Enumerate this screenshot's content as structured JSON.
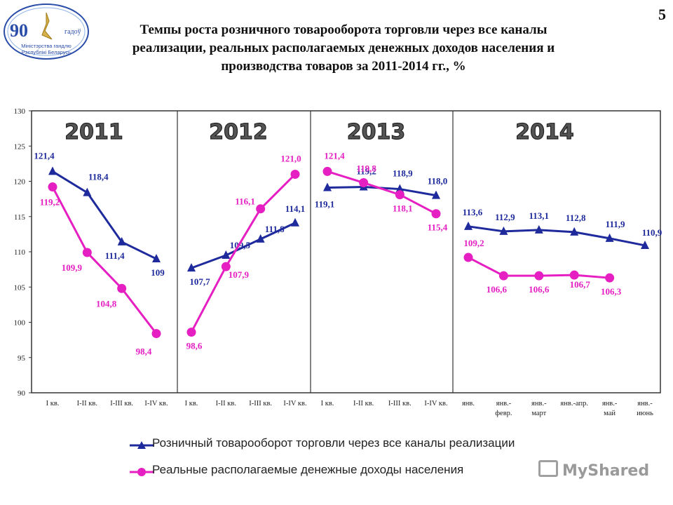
{
  "title": "Темпы роста розничного товарооборота торговли через все каналы реализации, реальных располагаемых денежных доходов населения и производства товаров за 2011-2014 гг., %",
  "page_number": "5",
  "logo": {
    "number": "90",
    "suffix": "гадоў",
    "text_line1": "Міністэрства гандлю",
    "text_line2": "Рэспублікі Беларусь"
  },
  "watermark": "MyShared",
  "colors": {
    "retail": "#1f2b9c",
    "income": "#e61fc3",
    "axis": "#333333",
    "year_label": "#555555"
  },
  "chart_data": {
    "type": "line",
    "ylim": [
      90,
      130
    ],
    "yticks": [
      90,
      95,
      100,
      105,
      110,
      115,
      120,
      125,
      130
    ],
    "grid": false,
    "legend_position": "bottom",
    "categories": [
      {
        "label": "I кв.",
        "group": 0
      },
      {
        "label": "I-II кв.",
        "group": 0
      },
      {
        "label": "I-III кв.",
        "group": 0
      },
      {
        "label": "I-IV кв.",
        "group": 0
      },
      {
        "label": "I кв.",
        "group": 1
      },
      {
        "label": "I-II кв.",
        "group": 1
      },
      {
        "label": "I-III кв.",
        "group": 1
      },
      {
        "label": "I-IV кв.",
        "group": 1
      },
      {
        "label": "I кв.",
        "group": 2
      },
      {
        "label": "I-II кв.",
        "group": 2
      },
      {
        "label": "I-III кв.",
        "group": 2
      },
      {
        "label": "I-IV кв.",
        "group": 2
      },
      {
        "label": "янв.",
        "group": 3
      },
      {
        "label": "янв.-\nфевр.",
        "group": 3
      },
      {
        "label": "янв.-\nмарт",
        "group": 3
      },
      {
        "label": "янв.-апр.",
        "group": 3
      },
      {
        "label": "янв.-\nмай",
        "group": 3
      },
      {
        "label": "янв.-\nиюнь",
        "group": 3
      }
    ],
    "groups": [
      "2011",
      "2012",
      "2013",
      "2014"
    ],
    "series": [
      {
        "name": "Розничный товарооборот торговли через все каналы реализации",
        "marker": "triangle",
        "values": [
          121.4,
          118.4,
          111.4,
          109,
          107.7,
          109.5,
          111.8,
          114.1,
          119.1,
          119.2,
          118.9,
          118.0,
          113.6,
          112.9,
          113.1,
          112.8,
          111.9,
          110.9
        ],
        "labels": [
          "121,4",
          "118,4",
          "111,4",
          "109",
          "107,7",
          "109,5",
          "111,8",
          "114,1",
          "119,1",
          "119,2",
          "118,9",
          "118,0",
          "113,6",
          "112,9",
          "113,1",
          "112,8",
          "111,9",
          "110,9"
        ]
      },
      {
        "name": "Реальные располагаемые денежные доходы населения",
        "marker": "circle",
        "values": [
          119.2,
          109.9,
          104.8,
          98.4,
          98.6,
          107.9,
          116.1,
          121.0,
          121.4,
          119.8,
          118.1,
          115.4,
          109.2,
          106.6,
          106.6,
          106.7,
          106.3,
          null
        ],
        "labels": [
          "119,2",
          "109,9",
          "104,8",
          "98,4",
          "98,6",
          "107,9",
          "116,1",
          "121,0",
          "121,4",
          "119,8",
          "118,1",
          "115,4",
          "109,2",
          "106,6",
          "106,6",
          "106,7",
          "106,3",
          null
        ]
      }
    ]
  }
}
